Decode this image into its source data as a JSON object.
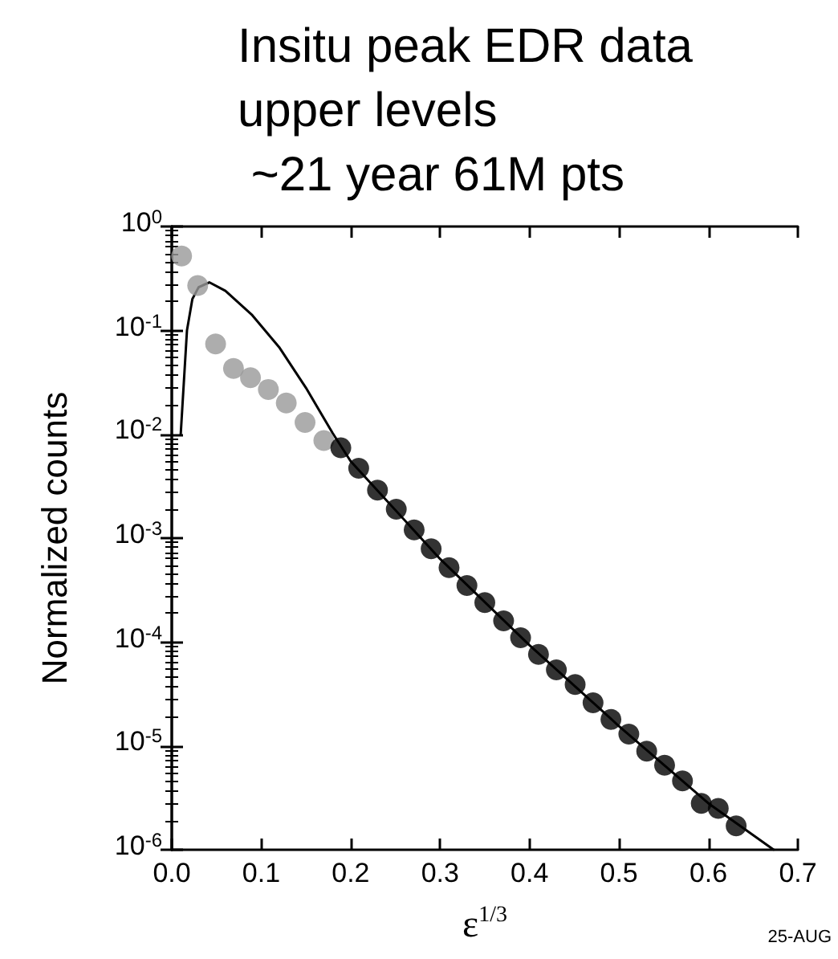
{
  "chart_data": {
    "type": "scatter",
    "title": "Insitu peak EDR data\nupper levels\n ~21 year 61M pts",
    "xlabel": "ε$^{1/3}$",
    "ylabel": "Normalized counts",
    "annotations": [
      "25-AUG"
    ],
    "log": "y",
    "xlim": [
      0,
      0.7
    ],
    "ylim": [
      1e-06,
      1
    ],
    "xticks": [
      {
        "value": 0,
        "label": "0.0"
      },
      0.1,
      0.2,
      0.3,
      0.4,
      0.5,
      0.6,
      0.7
    ],
    "yticks": [
      {
        "value": 1e-06,
        "label": "10$^{-6}$"
      },
      {
        "value": 1e-05,
        "label": "10$^{-5}$"
      },
      {
        "value": 0.0001,
        "label": "10$^{-4}$"
      },
      {
        "value": 0.001,
        "label": "10$^{-3}$"
      },
      {
        "value": 0.01,
        "label": "10$^{-2}$"
      },
      {
        "value": 0.1,
        "label": "10$^{-1}$"
      },
      {
        "value": 1,
        "label": "10$^{0}$"
      }
    ],
    "grid": false,
    "series": [
      {
        "color": "#999999",
        "marker": "circle",
        "x": [
          0.011,
          0.029,
          0.049,
          0.069,
          0.088,
          0.108,
          0.128,
          0.149,
          0.17
        ],
        "values": [
          0.52,
          0.27,
          0.074,
          0.043,
          0.035,
          0.027,
          0.02,
          0.013,
          0.0087
        ]
      },
      {
        "color": "#000000",
        "marker": "circle",
        "x": [
          0.189,
          0.209,
          0.23,
          0.251,
          0.271,
          0.29,
          0.31,
          0.33,
          0.35,
          0.371,
          0.39,
          0.41,
          0.43,
          0.451,
          0.471,
          0.491,
          0.511,
          0.531,
          0.551,
          0.571,
          0.592,
          0.611,
          0.631
        ],
        "values": [
          0.0074,
          0.0047,
          0.0029,
          0.0019,
          0.0012,
          0.00079,
          0.00052,
          0.00035,
          0.00024,
          0.00016,
          0.00011,
          7.6e-05,
          5.4e-05,
          3.9e-05,
          2.6e-05,
          1.8e-05,
          1.3e-05,
          8.9e-06,
          6.5e-06,
          4.6e-06,
          2.8e-06,
          2.5e-06,
          1.7e-06
        ]
      },
      {
        "type": "line",
        "color": "#000000",
        "marker": "none",
        "line_style": "solid",
        "x": [
          0.01,
          0.017,
          0.023,
          0.03,
          0.042,
          0.06,
          0.09,
          0.12,
          0.15,
          0.18,
          0.2,
          0.3,
          0.4,
          0.5,
          0.6,
          0.673
        ],
        "values": [
          0.01,
          0.1,
          0.2,
          0.26,
          0.29,
          0.24,
          0.14,
          0.069,
          0.028,
          0.0102,
          0.0055,
          0.00063,
          9.3e-05,
          1.55e-05,
          2.8e-06,
          1e-06
        ]
      }
    ]
  }
}
